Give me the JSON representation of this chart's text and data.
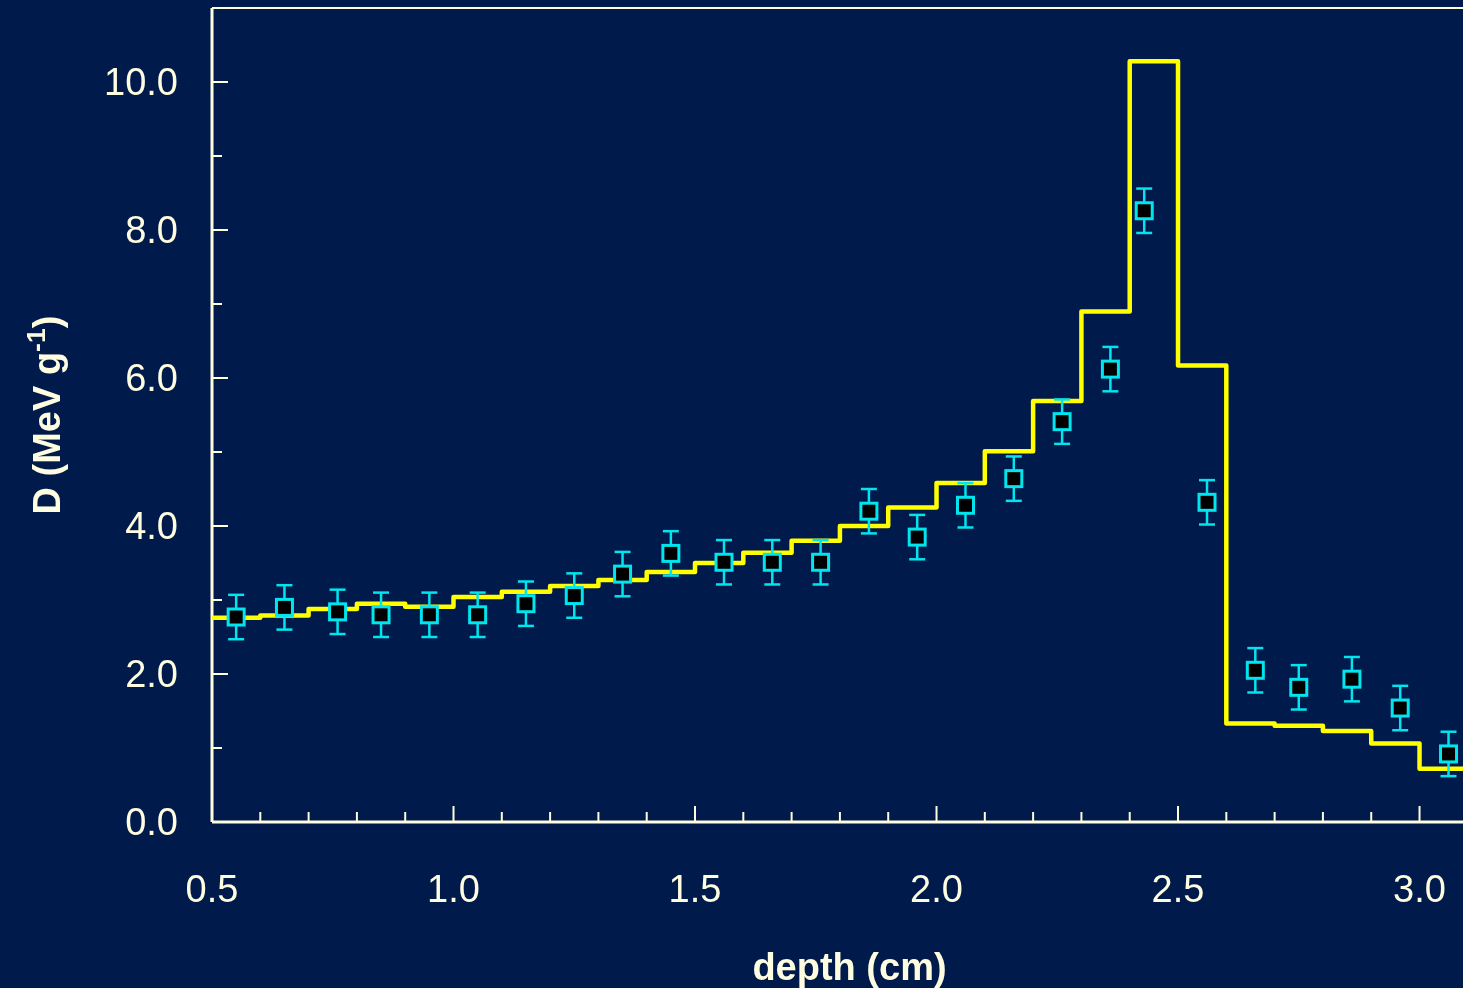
{
  "chart_data": {
    "type": "step",
    "xlabel": "depth (cm)",
    "ylabel": "D (MeV g$^{-1}$)",
    "xlim": [
      0.5,
      3.09
    ],
    "ylim": [
      0,
      11
    ],
    "xticks": [
      0.5,
      {
        "value": 0.6,
        "label": null
      },
      {
        "value": 0.7,
        "label": null
      },
      {
        "value": 0.8,
        "label": null
      },
      {
        "value": 0.9,
        "label": null
      },
      {
        "value": 1.0,
        "label": "1.0"
      },
      {
        "value": 1.1,
        "label": null
      },
      {
        "value": 1.2,
        "label": null
      },
      {
        "value": 1.3,
        "label": null
      },
      {
        "value": 1.4,
        "label": null
      },
      1.5,
      {
        "value": 1.6,
        "label": null
      },
      {
        "value": 1.7,
        "label": null
      },
      {
        "value": 1.8,
        "label": null
      },
      {
        "value": 1.9,
        "label": null
      },
      {
        "value": 2.0,
        "label": "2.0"
      },
      {
        "value": 2.1,
        "label": null
      },
      {
        "value": 2.2,
        "label": null
      },
      {
        "value": 2.3,
        "label": null
      },
      {
        "value": 2.4,
        "label": null
      },
      2.5,
      {
        "value": 2.6,
        "label": null
      },
      {
        "value": 2.7,
        "label": null
      },
      {
        "value": 2.8,
        "label": null
      },
      {
        "value": 2.9,
        "label": null
      },
      {
        "value": 3.0,
        "label": "3.0"
      }
    ],
    "yticks": [
      {
        "value": 0,
        "label": "0.0"
      },
      {
        "value": 1,
        "label": null
      },
      {
        "value": 2,
        "label": "2.0"
      },
      {
        "value": 3,
        "label": null
      },
      {
        "value": 4,
        "label": "4.0"
      },
      {
        "value": 5,
        "label": null
      },
      {
        "value": 6,
        "label": "6.0"
      },
      {
        "value": 7,
        "label": null
      },
      {
        "value": 8,
        "label": "8.0"
      },
      {
        "value": 9,
        "label": null
      },
      {
        "value": 10,
        "label": "10.0"
      }
    ],
    "series": [
      {
        "color": "#ffff00",
        "marker": "none",
        "x": [
          0.5,
          0.6,
          0.7,
          0.8,
          0.9,
          1.0,
          1.1,
          1.2,
          1.3,
          1.4,
          1.5,
          1.6,
          1.7,
          1.8,
          1.9,
          2.0,
          2.1,
          2.2,
          2.3,
          2.4,
          2.5,
          2.6,
          2.7,
          2.8,
          2.9,
          3.0,
          3.09
        ],
        "values": [
          2.76,
          2.79,
          2.88,
          2.95,
          2.91,
          3.04,
          3.11,
          3.19,
          3.27,
          3.38,
          3.5,
          3.64,
          3.8,
          4.0,
          4.25,
          4.58,
          5.01,
          5.69,
          6.9,
          10.28,
          6.17,
          1.33,
          1.3,
          1.23,
          1.06,
          0.72,
          0.72
        ]
      },
      {
        "type": "scatter",
        "color": "#00e5ee",
        "marker": "square",
        "x": [
          0.55,
          0.65,
          0.76,
          0.85,
          0.95,
          1.05,
          1.15,
          1.25,
          1.35,
          1.45,
          1.56,
          1.66,
          1.76,
          1.86,
          1.96,
          2.06,
          2.16,
          2.26,
          2.36,
          2.43,
          2.56,
          2.66,
          2.75,
          2.86,
          2.96,
          3.06
        ],
        "values": [
          2.77,
          2.9,
          2.84,
          2.8,
          2.8,
          2.8,
          2.95,
          3.06,
          3.35,
          3.63,
          3.51,
          3.51,
          3.51,
          4.2,
          3.85,
          4.28,
          4.64,
          5.41,
          6.12,
          8.26,
          4.32,
          2.05,
          1.82,
          1.93,
          1.54,
          0.92
        ],
        "errors": [
          0.3,
          0.3,
          0.3,
          0.3,
          0.3,
          0.3,
          0.3,
          0.3,
          0.3,
          0.3,
          0.3,
          0.3,
          0.3,
          0.3,
          0.3,
          0.3,
          0.3,
          0.3,
          0.3,
          0.3,
          0.3,
          0.3,
          0.3,
          0.3,
          0.3,
          0.3
        ]
      }
    ]
  }
}
